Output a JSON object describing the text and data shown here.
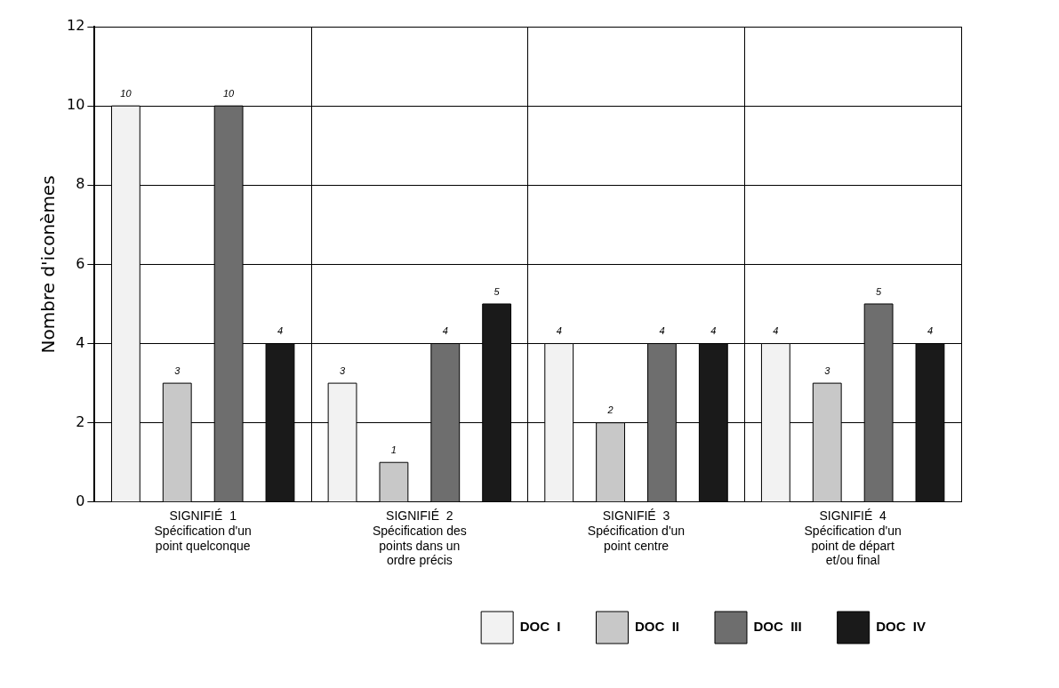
{
  "chart_data": {
    "type": "bar",
    "ylabel": "Nombre d'iconèmes",
    "categories": [
      "SIGNIFIÉ  1\nSpécification d'un\npoint quelconque",
      "SIGNIFIÉ  2\nSpécification des\npoints dans un\nordre précis",
      "SIGNIFIÉ  3\nSpécification d'un\npoint centre",
      "SIGNIFIÉ  4\nSpécification d'un\npoint de départ\net/ou final"
    ],
    "series": [
      {
        "name": "DOC  I",
        "color": "#f2f2f2",
        "values": [
          10,
          3,
          4,
          4
        ]
      },
      {
        "name": "DOC  II",
        "color": "#c8c8c8",
        "values": [
          3,
          1,
          2,
          3
        ]
      },
      {
        "name": "DOC  III",
        "color": "#6e6e6e",
        "values": [
          10,
          4,
          4,
          5
        ]
      },
      {
        "name": "DOC  IV",
        "color": "#1a1a1a",
        "values": [
          4,
          5,
          4,
          4
        ]
      }
    ],
    "ylim": [
      0,
      12
    ],
    "yticks": [
      0,
      2,
      4,
      6,
      8,
      10,
      12
    ],
    "grid": true,
    "legend": "bottom",
    "data_labels": true
  }
}
